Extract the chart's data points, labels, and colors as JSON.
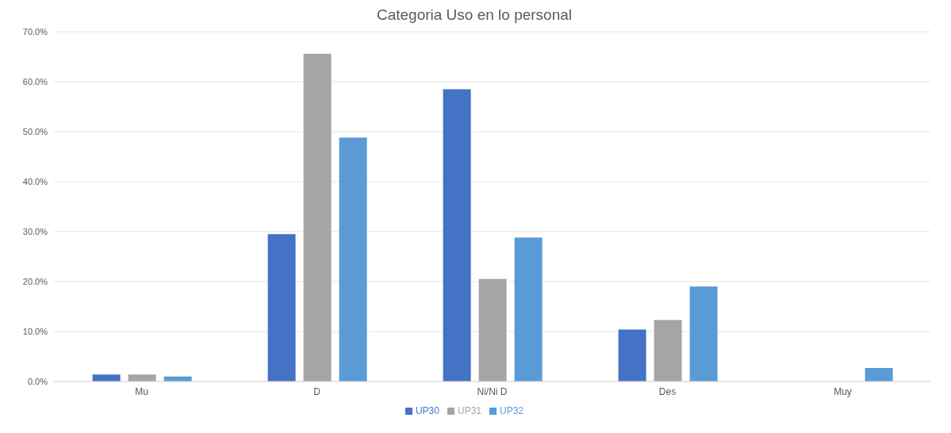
{
  "chart_data": {
    "type": "bar",
    "title": "Categoria Uso en lo personal",
    "categories": [
      "Mu",
      "D",
      "Ni/Ni D",
      "Des",
      "Muy"
    ],
    "series": [
      {
        "name": "UP30",
        "color": "#4472c4",
        "values": [
          1.4,
          29.5,
          58.5,
          10.4,
          0
        ]
      },
      {
        "name": "UP31",
        "color": "#a5a5a5",
        "values": [
          1.4,
          65.6,
          20.5,
          12.3,
          0
        ]
      },
      {
        "name": "UP32",
        "color": "#5b9bd5",
        "values": [
          1.0,
          48.8,
          28.8,
          19.0,
          2.7
        ]
      }
    ],
    "ylim": [
      0,
      70
    ],
    "yticks": [
      {
        "value": 0,
        "label": "0.0%"
      },
      {
        "value": 10,
        "label": "10.0%"
      },
      {
        "value": 20,
        "label": "20.0%"
      },
      {
        "value": 30,
        "label": "30.0%"
      },
      {
        "value": 40,
        "label": "40.0%"
      },
      {
        "value": 50,
        "label": "50.0%"
      },
      {
        "value": 60,
        "label": "60.0%"
      },
      {
        "value": 70,
        "label": "70.0%"
      }
    ],
    "grid": "y",
    "legend": "bottom"
  }
}
